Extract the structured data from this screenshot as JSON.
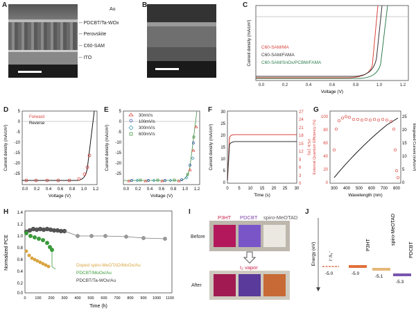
{
  "panels": {
    "A": {
      "label": "A",
      "layers": [
        "Au",
        "PDCBT/Ta-WOx",
        "Perovskite",
        "C60-SAM",
        "ITO"
      ]
    },
    "B": {
      "label": "B"
    },
    "C": {
      "label": "C",
      "ylabel": "Current density (mA/cm²)",
      "xlabel": "Voltage (V)",
      "xticks": [
        "0.0",
        "0.2",
        "0.4",
        "0.6",
        "0.8",
        "1.0",
        "1.2"
      ],
      "legend": [
        {
          "text": "C60-SAM/MA",
          "color": "#d9413a"
        },
        {
          "text": "C60-SAM/FAMA",
          "color": "#333333"
        },
        {
          "text": "C60-SAM/SnOx/PCBM/FAMA",
          "color": "#2e7d4f"
        }
      ]
    },
    "D": {
      "label": "D",
      "ylabel": "Current density (mA/cm²)",
      "xlabel": "Voltage (V)",
      "yticks": [
        "5",
        "0",
        "-5",
        "-10",
        "-15",
        "-20",
        "-25"
      ],
      "xticks": [
        "0.0",
        "0.2",
        "0.4",
        "0.6",
        "0.8",
        "1.0",
        "1.2"
      ],
      "legend": [
        {
          "text": "Forward",
          "color": "#d9413a"
        },
        {
          "text": "Reverse",
          "color": "#111111"
        }
      ]
    },
    "E": {
      "label": "E",
      "ylabel": "Current density (mA/cm²)",
      "xlabel": "Voltage (V)",
      "yticks": [
        "5",
        "0",
        "-5",
        "-10",
        "-15",
        "-20",
        "-25"
      ],
      "xticks": [
        "0.0",
        "0.2",
        "0.4",
        "0.6",
        "0.8",
        "1.0",
        "1.2"
      ],
      "legend": [
        {
          "text": "30mV/s",
          "color": "#d9413a"
        },
        {
          "text": "100mV/s",
          "color": "#2a4fa8"
        },
        {
          "text": "300mV/s",
          "color": "#2a8fa8"
        },
        {
          "text": "600mV/s",
          "color": "#3a8a3a"
        }
      ]
    },
    "F": {
      "label": "F",
      "ylabel": "Current density (mA/cm²)",
      "ylabel2": "PCE (%)",
      "xlabel": "Time (s)",
      "yticks": [
        "30",
        "25",
        "20",
        "15",
        "10",
        "5",
        "0"
      ],
      "y2ticks": [
        "27",
        "24",
        "21",
        "18",
        "15",
        "12",
        "9",
        "6",
        "3",
        "0"
      ],
      "xticks": [
        "0",
        "5",
        "10",
        "15",
        "20",
        "25",
        "30"
      ]
    },
    "G": {
      "label": "G",
      "ylabel": "External Quantum Efficiency (%)",
      "ylabel2": "Integrated Current (mA/cm²)",
      "xlabel": "Wavelength (nm)",
      "yticks": [
        "100",
        "80",
        "60",
        "40",
        "20",
        "0"
      ],
      "y2ticks": [
        "25",
        "20",
        "15",
        "10",
        "5",
        "0"
      ],
      "xticks": [
        "300",
        "400",
        "500",
        "600",
        "700",
        "800"
      ]
    },
    "H": {
      "label": "H",
      "ylabel": "Normalized PCE",
      "xlabel": "Time (h)",
      "yticks": [
        "1.4",
        "1.2",
        "1.0",
        "0.8",
        "0.6",
        "0.4",
        "0.2",
        "0.0"
      ],
      "xticks": [
        "0",
        "100",
        "200",
        "300",
        "400",
        "500",
        "600",
        "700",
        "800",
        "900",
        "1000",
        "1100"
      ],
      "legend": [
        {
          "text": "Doped spiro-MeOTAD/MoOx/Au",
          "color": "#d9a441"
        },
        {
          "text": "PDCBT/MoOx/Au",
          "color": "#3a9a3a"
        },
        {
          "text": "PDCBT/Ta-WOx/Au",
          "color": "#333333"
        }
      ]
    },
    "I": {
      "label": "I",
      "headers": [
        {
          "text": "P3HT",
          "color": "#cc1f4a"
        },
        {
          "text": "PDCBT",
          "color": "#7a3fa6"
        },
        {
          "text": "spiro-MeOTAD",
          "color": "#555555"
        }
      ],
      "before": "Before",
      "after": "After",
      "vapor": "I₂ vapor"
    },
    "J": {
      "label": "J",
      "axis": "Energy (eV)",
      "redox": "I⁻/I₃⁻",
      "redox_val": "-5.0",
      "levels": [
        {
          "name": "P3HT",
          "val": "-5.0",
          "color": "#e0703a"
        },
        {
          "name": "spiro-MeOTAD",
          "val": "-5.1",
          "color": "#e5b878"
        },
        {
          "name": "PDCBT",
          "val": "-5.3",
          "color": "#7a55b0"
        }
      ]
    }
  }
}
